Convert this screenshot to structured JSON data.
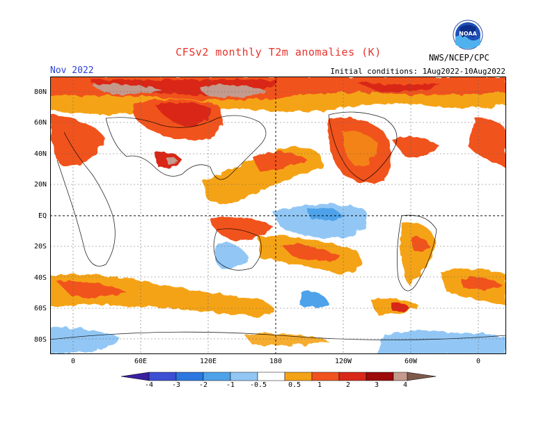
{
  "header": {
    "title": "CFSv2 monthly T2m anomalies (K)",
    "month": "Nov 2022",
    "initial_conditions": "Initial conditions: 1Aug2022-10Aug2022",
    "agency": "NWS/NCEP/CPC",
    "logo_text": "NOAA"
  },
  "map": {
    "lat_labels": [
      "80N",
      "60N",
      "40N",
      "20N",
      "EQ",
      "20S",
      "40S",
      "60S",
      "80S"
    ],
    "lon_labels": [
      "0",
      "60E",
      "120E",
      "180",
      "120W",
      "60W",
      "0"
    ]
  },
  "colorbar": {
    "labels": [
      "-4",
      "-3",
      "-2",
      "-1",
      "-0.5",
      "0.5",
      "1",
      "2",
      "3",
      "4"
    ],
    "colors": [
      "#3a1fa0",
      "#3d4fd2",
      "#2c78e0",
      "#4ea2ea",
      "#92c7f5",
      "#ffffff",
      "#f5a316",
      "#f1531f",
      "#d92818",
      "#9c0a0a",
      "#c49a8c",
      "#7d5a4c"
    ]
  }
}
